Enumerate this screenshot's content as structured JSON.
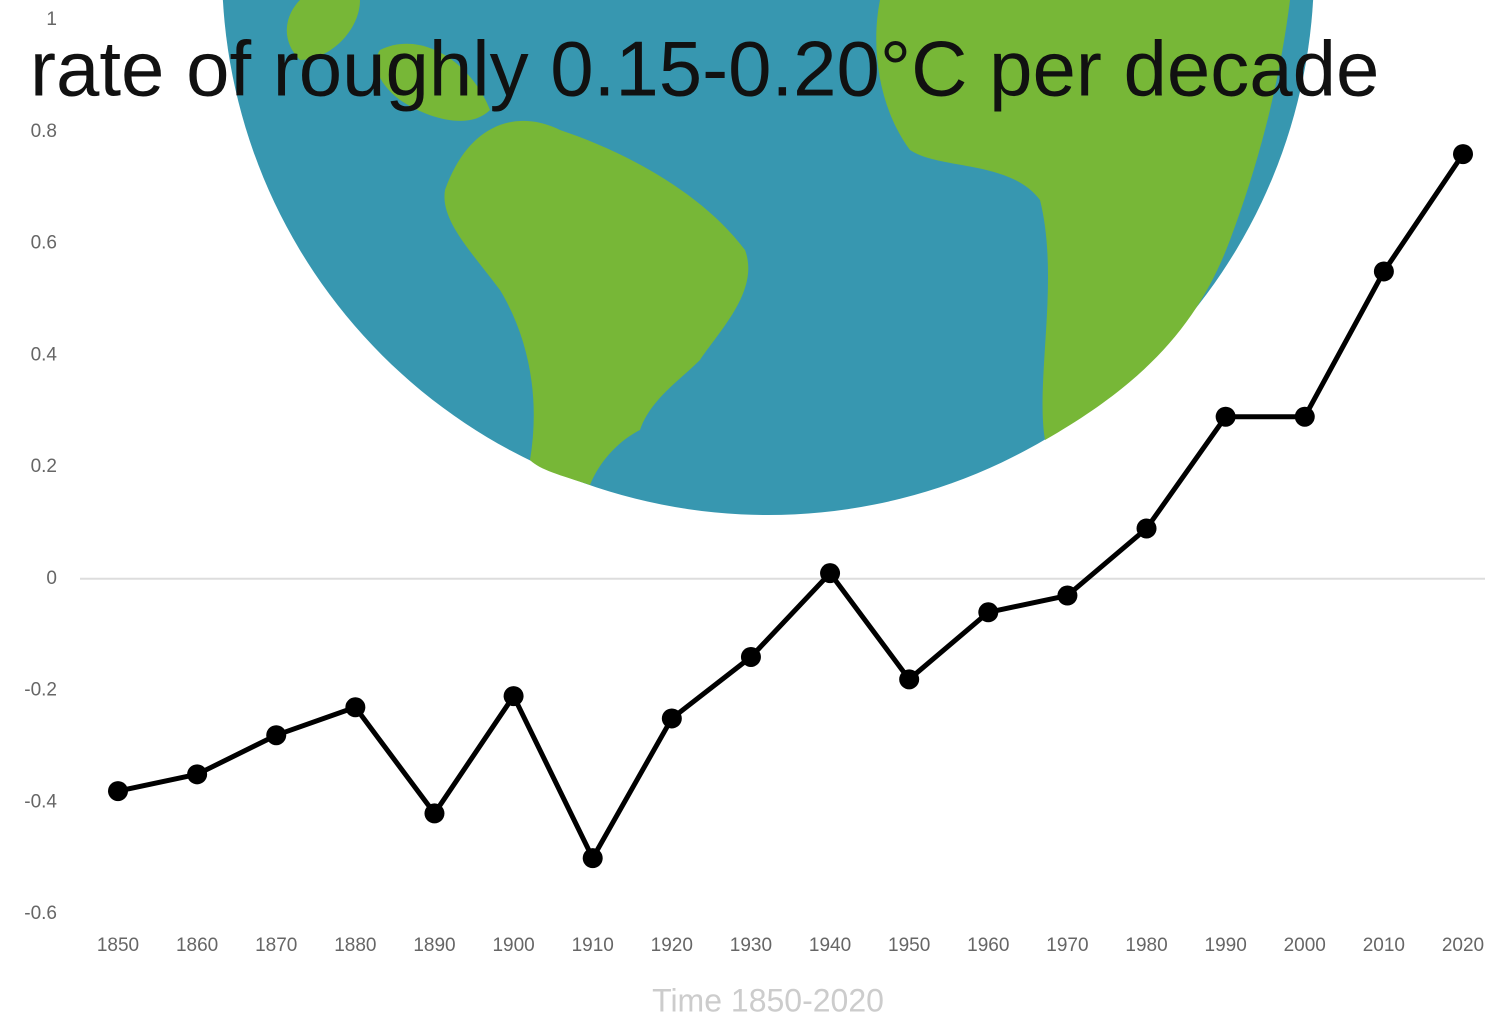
{
  "chart_data": {
    "type": "line",
    "title": "rate of roughly 0.15-0.20°C per decade",
    "x_label": "Time 1850-2020",
    "x": [
      1850,
      1860,
      1870,
      1880,
      1890,
      1900,
      1910,
      1920,
      1930,
      1940,
      1950,
      1960,
      1970,
      1980,
      1990,
      2000,
      2010,
      2020
    ],
    "values": [
      -0.38,
      -0.35,
      -0.28,
      -0.23,
      -0.42,
      -0.21,
      -0.5,
      -0.25,
      -0.14,
      0.01,
      -0.18,
      -0.06,
      -0.03,
      0.09,
      0.29,
      0.29,
      0.55,
      0.76
    ],
    "color": "#000000",
    "xlim": [
      1850,
      2020
    ],
    "xticks": [
      1850,
      1860,
      1870,
      1880,
      1890,
      1900,
      1910,
      1920,
      1930,
      1940,
      1950,
      1960,
      1970,
      1980,
      1990,
      2000,
      2010,
      2020
    ],
    "ylim": [
      -0.6,
      1
    ],
    "yticks": [
      1,
      0.8,
      0.6,
      0.4,
      0.2,
      0,
      -0.2,
      -0.4,
      -0.6
    ]
  }
}
